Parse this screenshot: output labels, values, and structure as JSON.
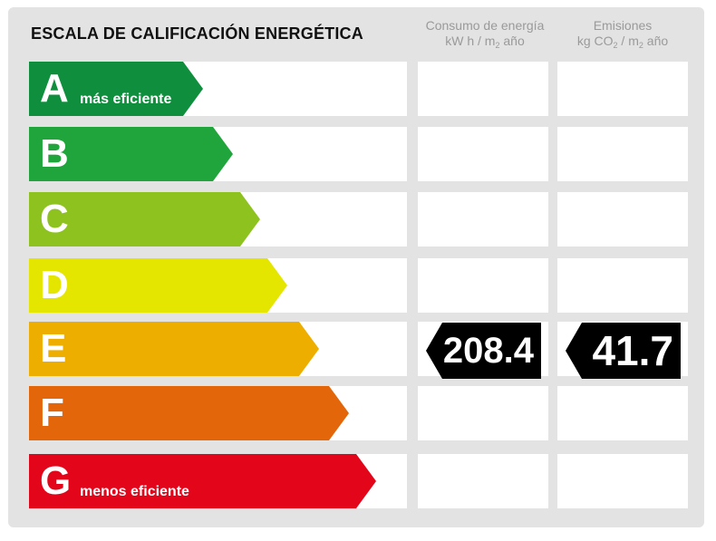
{
  "title": "ESCALA DE CALIFICACIÓN ENERGÉTICA",
  "columns": {
    "consumo": {
      "line1": "Consumo de energía",
      "line2a": "kW h / m",
      "sub": "2",
      "line2b": " año"
    },
    "emisiones": {
      "line1": "Emisiones",
      "line2a": "kg CO",
      "sub1": "2",
      "line2b": " / m",
      "sub2": "2",
      "line2c": " año"
    }
  },
  "ratings": [
    {
      "letter": "A",
      "sublabel": "más eficiente",
      "color": "#0f8f3e"
    },
    {
      "letter": "B",
      "sublabel": "",
      "color": "#1fa53c"
    },
    {
      "letter": "C",
      "sublabel": "",
      "color": "#8dc21f"
    },
    {
      "letter": "D",
      "sublabel": "",
      "color": "#e4e600"
    },
    {
      "letter": "E",
      "sublabel": "",
      "color": "#eeae00"
    },
    {
      "letter": "F",
      "sublabel": "",
      "color": "#e4660a"
    },
    {
      "letter": "G",
      "sublabel": "menos eficiente",
      "color": "#e3061b"
    }
  ],
  "current": {
    "rating": "E",
    "consumo_value": "208.4",
    "emisiones_value": "41.7"
  }
}
